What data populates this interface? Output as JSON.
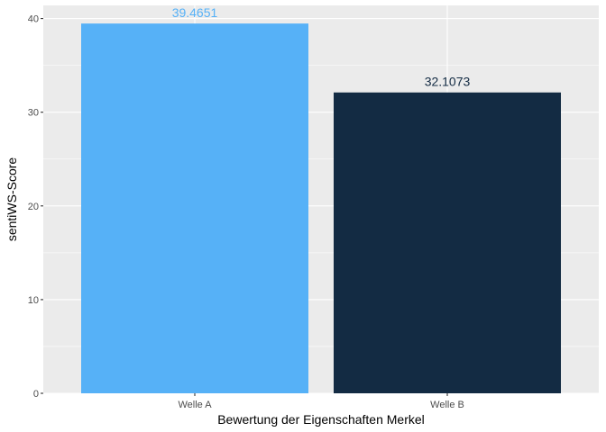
{
  "chart_data": {
    "type": "bar",
    "title": "",
    "xlabel": "Bewertung der Eigenschaften Merkel",
    "ylabel": "sentiWS-Score",
    "categories": [
      "Welle A",
      "Welle B"
    ],
    "values": [
      39.4651,
      32.1073
    ],
    "data_labels": [
      "39.4651",
      "32.1073"
    ],
    "colors": [
      "#56B1F7",
      "#132B43"
    ],
    "yticks": [
      0,
      10,
      20,
      30,
      40
    ],
    "ylim": [
      0,
      41.4
    ],
    "grid": true,
    "legend": "none",
    "panel_background": "#EBEBEB",
    "grid_color": "#FFFFFF"
  }
}
